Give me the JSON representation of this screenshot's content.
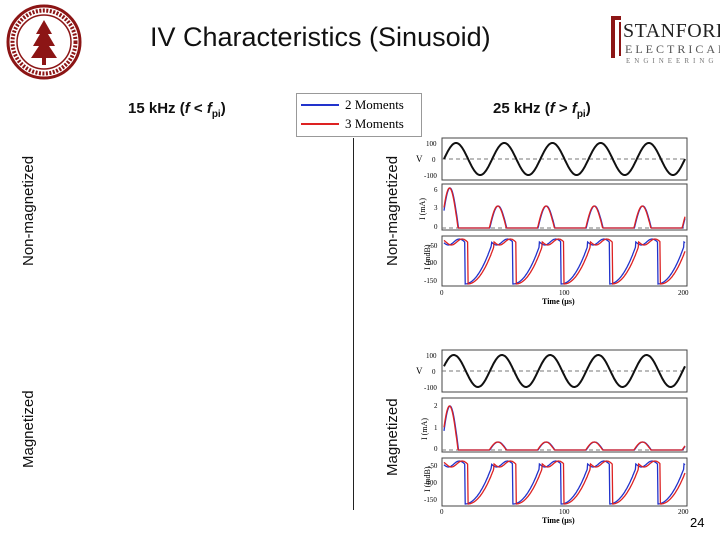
{
  "title": "IV Characteristics (Sinusoid)",
  "seal": {
    "caption": "Leland Stanford Junior University seal"
  },
  "brand": {
    "line1": "STANFORD",
    "line2": "ELECTRICAL",
    "line3": "ENGINEERING"
  },
  "columns": {
    "left": {
      "prefix": "15 kHz (",
      "f": "f",
      "relation": " < ",
      "f2": "f",
      "sub": "pi",
      "suffix": ")"
    },
    "right": {
      "prefix": "25 kHz (",
      "f": "f",
      "relation": " > ",
      "f2": "f",
      "sub": "pi",
      "suffix": ")"
    }
  },
  "row_labels": {
    "left_top": "Non-magnetized",
    "left_bottom": "Magnetized",
    "right_top": "Non-magnetized",
    "right_bottom": "Magnetized"
  },
  "legend": {
    "items": [
      {
        "label": "2 Moments",
        "color": "#2233cc"
      },
      {
        "label": "3 Moments",
        "color": "#dd2222"
      }
    ]
  },
  "plots": {
    "top": {
      "v_ylabel": "V",
      "v_ticks": [
        "100",
        "0",
        "-100"
      ],
      "i_ylabel": "I (mA)",
      "i_ticks": [
        "6",
        "3",
        "0"
      ],
      "idb_ylabel": "I (mdB)",
      "idb_ticks": [
        "-50",
        "-100",
        "-150"
      ],
      "x_ticks": [
        "0",
        "100",
        "200"
      ],
      "xlabel": "Time (μs)"
    },
    "bottom": {
      "v_ylabel": "V",
      "v_ticks": [
        "100",
        "0",
        "-100"
      ],
      "i_ylabel": "I (mA)",
      "i_ticks": [
        "2",
        "1",
        "0"
      ],
      "idb_ylabel": "I (mdB)",
      "idb_ticks": [
        "-50",
        "-100",
        "-150"
      ],
      "x_ticks": [
        "0",
        "100",
        "200"
      ],
      "xlabel": "Time (μs)"
    }
  },
  "colors": {
    "blue": "#2233cc",
    "red": "#dd2222",
    "sinusoid": "#111111"
  },
  "page_number": "24"
}
